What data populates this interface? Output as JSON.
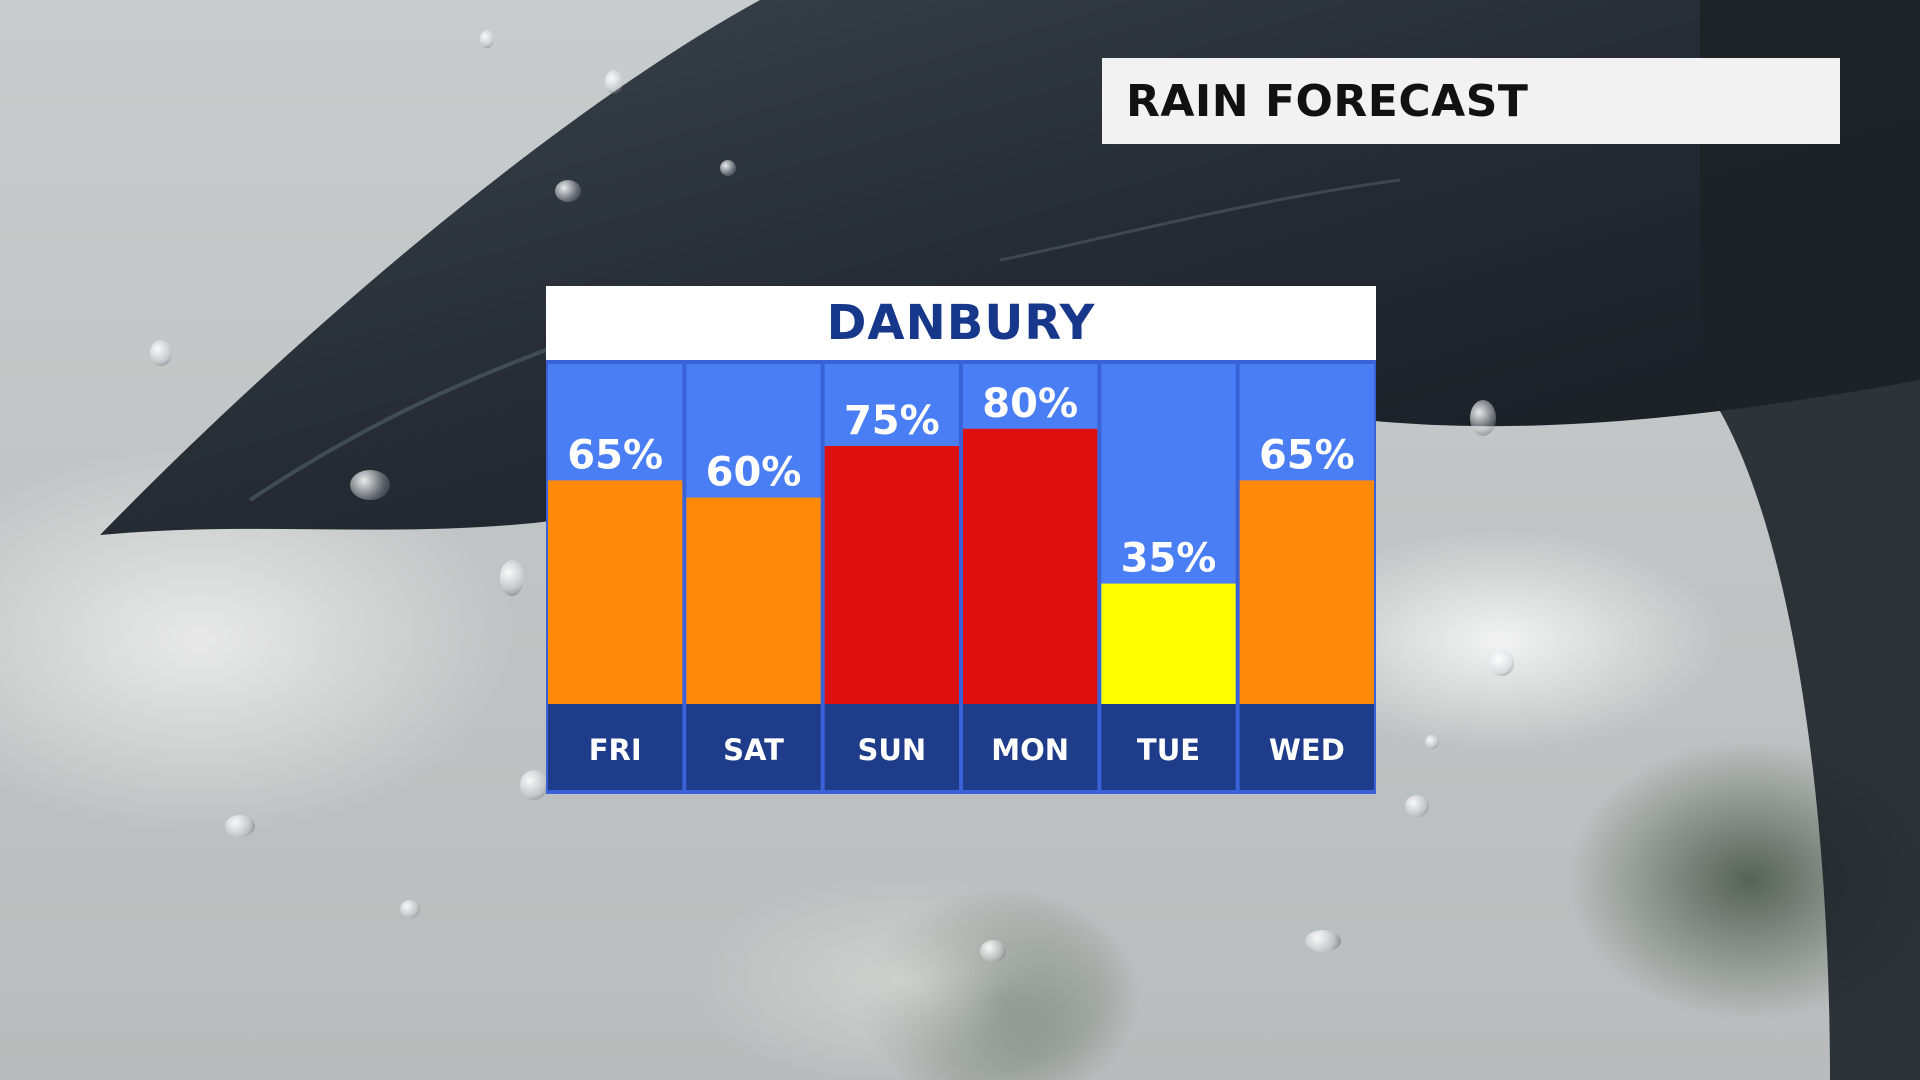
{
  "title": "RAIN FORECAST",
  "location": "DANBURY",
  "chart_data": {
    "type": "bar",
    "title": "DANBURY",
    "categories": [
      "FRI",
      "SAT",
      "SUN",
      "MON",
      "TUE",
      "WED"
    ],
    "values": [
      65,
      60,
      75,
      80,
      35,
      65
    ],
    "value_labels": [
      "65%",
      "60%",
      "75%",
      "80%",
      "35%",
      "65%"
    ],
    "unit": "%",
    "ylim": [
      0,
      100
    ],
    "grid": false,
    "legend": "none",
    "colors": {
      "column_background": "#4a7ef5",
      "label_band": "#1e3c8a",
      "separator": "#3a62d8",
      "low": "#ffff00",
      "medium": "#ff8a0a",
      "high": "#dd0f0f"
    },
    "bar_colors": [
      "#ff8a0a",
      "#ff8a0a",
      "#dd0f0f",
      "#dd0f0f",
      "#ffff00",
      "#ff8a0a"
    ]
  }
}
